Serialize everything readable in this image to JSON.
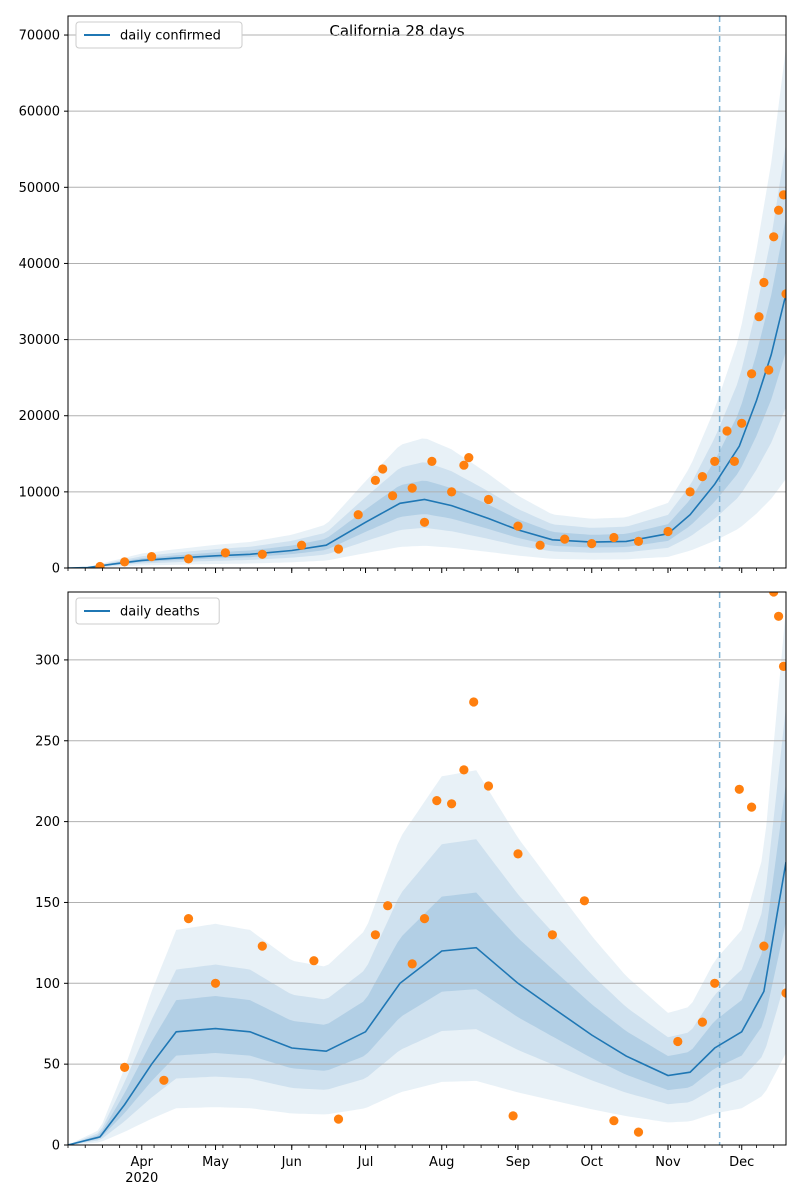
{
  "figure": {
    "title": "California 28 days"
  },
  "colors": {
    "line": "#1f77b4",
    "points": "#ff7f0e",
    "band": "#1f77b4",
    "grid": "#b0b0b0",
    "forecast_line": "#7fb3d5"
  },
  "chart_data": [
    {
      "type": "line",
      "title": "California 28 days",
      "xlabel": "",
      "ylabel": "",
      "xlim": [
        "2020-03-02",
        "2020-12-19"
      ],
      "ylim": [
        0,
        72500
      ],
      "x_ticks": [
        "2020-04-01",
        "2020-05-01",
        "2020-06-01",
        "2020-07-01",
        "2020-08-01",
        "2020-09-01",
        "2020-10-01",
        "2020-11-01",
        "2020-12-01"
      ],
      "x_tick_labels": [
        "Apr",
        "May",
        "Jun",
        "Jul",
        "Aug",
        "Sep",
        "Oct",
        "Nov",
        "Dec"
      ],
      "x_year_label": "2020",
      "show_x_tick_labels": false,
      "y_ticks": [
        0,
        10000,
        20000,
        30000,
        40000,
        50000,
        60000,
        70000
      ],
      "y_tick_labels": [
        "0",
        "10000",
        "20000",
        "30000",
        "40000",
        "50000",
        "60000",
        "70000"
      ],
      "grid": "horizontal",
      "legend": "top-left",
      "forecast_start": "2020-11-22",
      "series": [
        {
          "name": "daily confirmed",
          "style": "line",
          "points": [
            [
              "2020-03-02",
              0
            ],
            [
              "2020-03-10",
              50
            ],
            [
              "2020-03-20",
              500
            ],
            [
              "2020-04-01",
              1000
            ],
            [
              "2020-04-15",
              1300
            ],
            [
              "2020-05-01",
              1600
            ],
            [
              "2020-05-15",
              1800
            ],
            [
              "2020-06-01",
              2300
            ],
            [
              "2020-06-15",
              3000
            ],
            [
              "2020-07-01",
              6000
            ],
            [
              "2020-07-15",
              8500
            ],
            [
              "2020-07-25",
              9000
            ],
            [
              "2020-08-05",
              8200
            ],
            [
              "2020-08-20",
              6500
            ],
            [
              "2020-09-01",
              5000
            ],
            [
              "2020-09-15",
              3700
            ],
            [
              "2020-10-01",
              3400
            ],
            [
              "2020-10-15",
              3500
            ],
            [
              "2020-11-01",
              4500
            ],
            [
              "2020-11-10",
              7000
            ],
            [
              "2020-11-20",
              11000
            ],
            [
              "2020-11-30",
              16000
            ],
            [
              "2020-12-07",
              22000
            ],
            [
              "2020-12-13",
              28000
            ],
            [
              "2020-12-19",
              36000
            ]
          ]
        },
        {
          "name": "",
          "style": "points",
          "points": [
            [
              "2020-03-15",
              200
            ],
            [
              "2020-03-25",
              800
            ],
            [
              "2020-04-05",
              1500
            ],
            [
              "2020-04-20",
              1200
            ],
            [
              "2020-05-05",
              2000
            ],
            [
              "2020-05-20",
              1800
            ],
            [
              "2020-06-05",
              3000
            ],
            [
              "2020-06-20",
              2500
            ],
            [
              "2020-06-28",
              7000
            ],
            [
              "2020-07-05",
              11500
            ],
            [
              "2020-07-08",
              13000
            ],
            [
              "2020-07-12",
              9500
            ],
            [
              "2020-07-20",
              10500
            ],
            [
              "2020-07-25",
              6000
            ],
            [
              "2020-07-28",
              14000
            ],
            [
              "2020-08-05",
              10000
            ],
            [
              "2020-08-10",
              13500
            ],
            [
              "2020-08-12",
              14500
            ],
            [
              "2020-08-20",
              9000
            ],
            [
              "2020-09-01",
              5500
            ],
            [
              "2020-09-10",
              3000
            ],
            [
              "2020-09-20",
              3800
            ],
            [
              "2020-10-01",
              3200
            ],
            [
              "2020-10-10",
              4000
            ],
            [
              "2020-10-20",
              3500
            ],
            [
              "2020-11-01",
              4800
            ],
            [
              "2020-11-10",
              10000
            ],
            [
              "2020-11-15",
              12000
            ],
            [
              "2020-11-20",
              14000
            ],
            [
              "2020-11-25",
              18000
            ],
            [
              "2020-11-28",
              14000
            ],
            [
              "2020-12-01",
              19000
            ],
            [
              "2020-12-05",
              25500
            ],
            [
              "2020-12-08",
              33000
            ],
            [
              "2020-12-10",
              37500
            ],
            [
              "2020-12-12",
              26000
            ],
            [
              "2020-12-14",
              43500
            ],
            [
              "2020-12-16",
              47000
            ],
            [
              "2020-12-18",
              49000
            ],
            [
              "2020-12-19",
              36000
            ]
          ]
        }
      ]
    },
    {
      "type": "line",
      "title": "",
      "xlabel": "",
      "ylabel": "",
      "xlim": [
        "2020-03-02",
        "2020-12-19"
      ],
      "ylim": [
        0,
        342
      ],
      "x_ticks": [
        "2020-04-01",
        "2020-05-01",
        "2020-06-01",
        "2020-07-01",
        "2020-08-01",
        "2020-09-01",
        "2020-10-01",
        "2020-11-01",
        "2020-12-01"
      ],
      "x_tick_labels": [
        "Apr",
        "May",
        "Jun",
        "Jul",
        "Aug",
        "Sep",
        "Oct",
        "Nov",
        "Dec"
      ],
      "x_year_label": "2020",
      "show_x_tick_labels": true,
      "y_ticks": [
        0,
        50,
        100,
        150,
        200,
        250,
        300
      ],
      "y_tick_labels": [
        "0",
        "50",
        "100",
        "150",
        "200",
        "250",
        "300"
      ],
      "grid": "horizontal",
      "legend": "top-left",
      "forecast_start": "2020-11-22",
      "series": [
        {
          "name": "daily deaths",
          "style": "line",
          "points": [
            [
              "2020-03-02",
              0
            ],
            [
              "2020-03-15",
              5
            ],
            [
              "2020-03-25",
              25
            ],
            [
              "2020-04-05",
              50
            ],
            [
              "2020-04-15",
              70
            ],
            [
              "2020-05-01",
              72
            ],
            [
              "2020-05-15",
              70
            ],
            [
              "2020-06-01",
              60
            ],
            [
              "2020-06-15",
              58
            ],
            [
              "2020-07-01",
              70
            ],
            [
              "2020-07-15",
              100
            ],
            [
              "2020-08-01",
              120
            ],
            [
              "2020-08-15",
              122
            ],
            [
              "2020-09-01",
              100
            ],
            [
              "2020-09-15",
              85
            ],
            [
              "2020-10-01",
              68
            ],
            [
              "2020-10-15",
              55
            ],
            [
              "2020-11-01",
              43
            ],
            [
              "2020-11-10",
              45
            ],
            [
              "2020-11-20",
              60
            ],
            [
              "2020-12-01",
              70
            ],
            [
              "2020-12-10",
              95
            ],
            [
              "2020-12-19",
              175
            ]
          ]
        },
        {
          "name": "",
          "style": "points",
          "points": [
            [
              "2020-03-25",
              48
            ],
            [
              "2020-04-10",
              40
            ],
            [
              "2020-04-20",
              140
            ],
            [
              "2020-05-01",
              100
            ],
            [
              "2020-05-20",
              123
            ],
            [
              "2020-06-10",
              114
            ],
            [
              "2020-06-20",
              16
            ],
            [
              "2020-07-05",
              130
            ],
            [
              "2020-07-10",
              148
            ],
            [
              "2020-07-20",
              112
            ],
            [
              "2020-07-25",
              140
            ],
            [
              "2020-07-30",
              213
            ],
            [
              "2020-08-05",
              211
            ],
            [
              "2020-08-10",
              232
            ],
            [
              "2020-08-14",
              274
            ],
            [
              "2020-08-20",
              222
            ],
            [
              "2020-08-30",
              18
            ],
            [
              "2020-09-01",
              180
            ],
            [
              "2020-09-15",
              130
            ],
            [
              "2020-09-28",
              151
            ],
            [
              "2020-10-10",
              15
            ],
            [
              "2020-10-20",
              8
            ],
            [
              "2020-11-05",
              64
            ],
            [
              "2020-11-15",
              76
            ],
            [
              "2020-11-20",
              100
            ],
            [
              "2020-11-30",
              220
            ],
            [
              "2020-12-05",
              209
            ],
            [
              "2020-12-10",
              123
            ],
            [
              "2020-12-14",
              342
            ],
            [
              "2020-12-16",
              327
            ],
            [
              "2020-12-18",
              296
            ],
            [
              "2020-12-19",
              94
            ]
          ]
        }
      ]
    }
  ]
}
